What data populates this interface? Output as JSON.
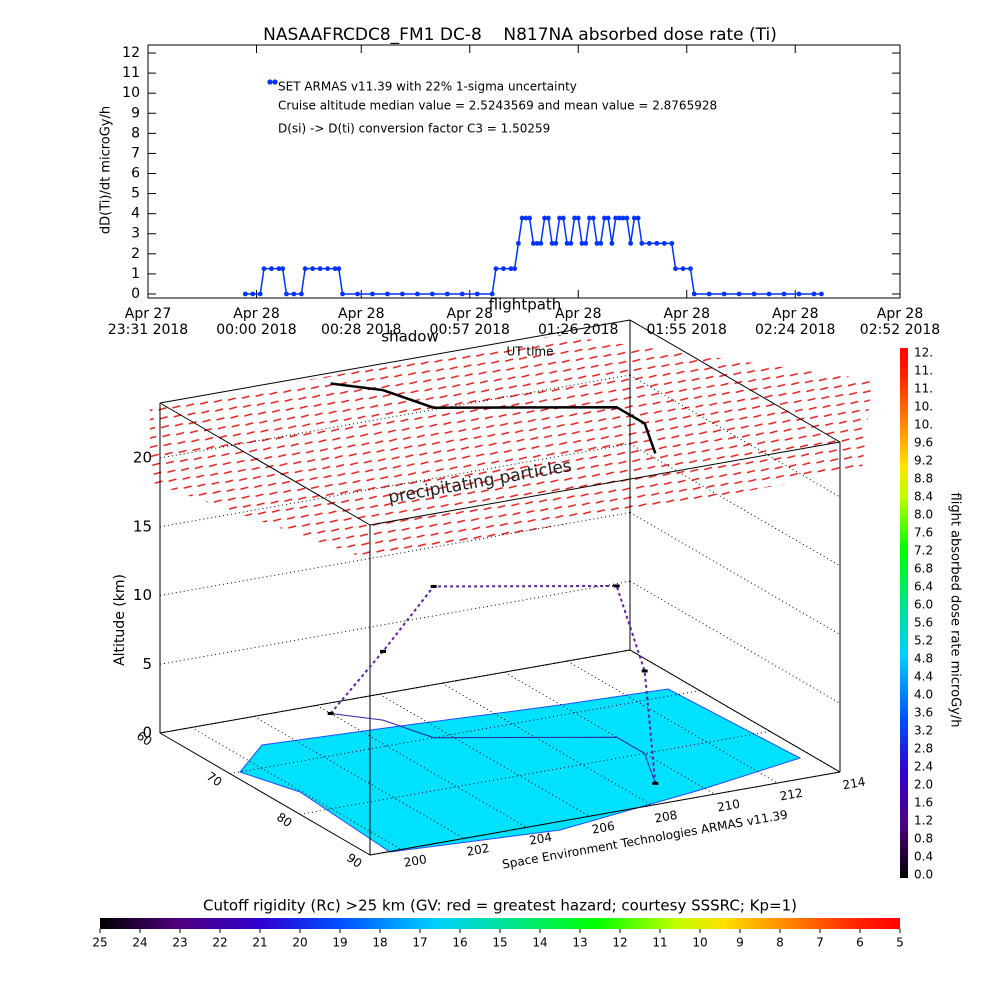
{
  "chart_data": [
    {
      "type": "line",
      "title": "NASAAFRCDC8_FM1 DC-8    N817NA absorbed dose rate (Ti)",
      "ylabel": "dD(Ti)/dt microGy/h",
      "xlabel": "UT time",
      "annotations": [
        "Cruise altitude median value = 2.5243569 and mean value = 2.8765928",
        "D(si) -> D(ti) conversion factor C3 = 1.50259"
      ],
      "x": [
        "2018-04-27 23:57",
        "2018-04-27 23:59",
        "2018-04-28 00:01",
        "2018-04-28 00:02",
        "2018-04-28 00:04",
        "2018-04-28 00:06",
        "2018-04-28 00:07",
        "2018-04-28 00:08",
        "2018-04-28 00:10",
        "2018-04-28 00:12",
        "2018-04-28 00:13",
        "2018-04-28 00:15",
        "2018-04-28 00:17",
        "2018-04-28 00:19",
        "2018-04-28 00:21",
        "2018-04-28 00:22",
        "2018-04-28 00:23",
        "2018-04-28 00:27",
        "2018-04-28 00:31",
        "2018-04-28 00:35",
        "2018-04-28 00:39",
        "2018-04-28 00:43",
        "2018-04-28 00:47",
        "2018-04-28 00:51",
        "2018-04-28 00:55",
        "2018-04-28 00:59",
        "2018-04-28 01:03",
        "2018-04-28 01:04",
        "2018-04-28 01:06",
        "2018-04-28 01:08",
        "2018-04-28 01:09",
        "2018-04-28 01:10",
        "2018-04-28 01:11",
        "2018-04-28 01:12",
        "2018-04-28 01:13",
        "2018-04-28 01:14",
        "2018-04-28 01:15",
        "2018-04-28 01:16",
        "2018-04-28 01:17",
        "2018-04-28 01:18",
        "2018-04-28 01:19",
        "2018-04-28 01:20",
        "2018-04-28 01:21",
        "2018-04-28 01:22",
        "2018-04-28 01:23",
        "2018-04-28 01:24",
        "2018-04-28 01:25",
        "2018-04-28 01:26",
        "2018-04-28 01:27",
        "2018-04-28 01:28",
        "2018-04-28 01:29",
        "2018-04-28 01:30",
        "2018-04-28 01:31",
        "2018-04-28 01:32",
        "2018-04-28 01:33",
        "2018-04-28 01:34",
        "2018-04-28 01:35",
        "2018-04-28 01:36",
        "2018-04-28 01:37",
        "2018-04-28 01:38",
        "2018-04-28 01:39",
        "2018-04-28 01:40",
        "2018-04-28 01:41",
        "2018-04-28 01:42",
        "2018-04-28 01:43",
        "2018-04-28 01:45",
        "2018-04-28 01:47",
        "2018-04-28 01:49",
        "2018-04-28 01:51",
        "2018-04-28 01:52",
        "2018-04-28 01:54",
        "2018-04-28 01:56",
        "2018-04-28 01:57",
        "2018-04-28 02:01",
        "2018-04-28 02:05",
        "2018-04-28 02:09",
        "2018-04-28 02:13",
        "2018-04-28 02:17",
        "2018-04-28 02:21",
        "2018-04-28 02:25",
        "2018-04-28 02:29",
        "2018-04-28 02:31"
      ],
      "series": [
        {
          "name": "SET ARMAS v11.39 with 22% 1-sigma uncertainty",
          "color": "#0033ff",
          "values": [
            0,
            0,
            0,
            1.26,
            1.26,
            1.26,
            1.26,
            0,
            0,
            0,
            1.26,
            1.26,
            1.26,
            1.26,
            1.26,
            1.26,
            0,
            0,
            0,
            0,
            0,
            0,
            0,
            0,
            0,
            0,
            0,
            1.26,
            1.26,
            1.26,
            1.26,
            2.52,
            3.78,
            3.78,
            3.78,
            2.52,
            2.52,
            2.52,
            3.78,
            3.78,
            2.52,
            2.52,
            3.78,
            3.78,
            2.52,
            2.52,
            3.78,
            3.78,
            2.52,
            2.52,
            3.78,
            3.78,
            2.52,
            2.52,
            3.78,
            3.78,
            2.52,
            3.78,
            3.78,
            3.78,
            3.78,
            2.52,
            3.78,
            3.78,
            2.52,
            2.52,
            2.52,
            2.52,
            2.52,
            1.26,
            1.26,
            1.26,
            0,
            0,
            0,
            0,
            0,
            0,
            0,
            0,
            0,
            0
          ]
        }
      ],
      "xlim": [
        "2018-04-27 23:31",
        "2018-04-28 02:52"
      ],
      "xticks": [
        {
          "value": "2018-04-27 23:31",
          "label": [
            "Apr 27",
            "23:31 2018"
          ]
        },
        {
          "value": "2018-04-28 00:00",
          "label": [
            "Apr 28",
            "00:00 2018"
          ]
        },
        {
          "value": "2018-04-28 00:28",
          "label": [
            "Apr 28",
            "00:28 2018"
          ]
        },
        {
          "value": "2018-04-28 00:57",
          "label": [
            "Apr 28",
            "00:57 2018"
          ]
        },
        {
          "value": "2018-04-28 01:26",
          "label": [
            "Apr 28",
            "01:26 2018"
          ]
        },
        {
          "value": "2018-04-28 01:55",
          "label": [
            "Apr 28",
            "01:55 2018"
          ]
        },
        {
          "value": "2018-04-28 02:24",
          "label": [
            "Apr 28",
            "02:24 2018"
          ]
        },
        {
          "value": "2018-04-28 02:52",
          "label": [
            "Apr 28",
            "02:52 2018"
          ]
        }
      ],
      "ylim": [
        -0.2,
        12.4
      ],
      "yticks": [
        0,
        1,
        2,
        3,
        4,
        5,
        6,
        7,
        8,
        9,
        10,
        11,
        12
      ]
    },
    {
      "type": "path3d",
      "zlabel": "Altitude (km)",
      "annotations": [
        "shadow",
        "precipitating particles"
      ],
      "credit": "Space Environment Technologies ARMAS v11.39",
      "xlim": [
        199,
        214
      ],
      "xticks": [
        200,
        202,
        204,
        206,
        208,
        210,
        212,
        214
      ],
      "ylim": [
        60,
        90
      ],
      "yticks": [
        60,
        70,
        80,
        90
      ],
      "zlim": [
        0,
        24
      ],
      "zticks": [
        0,
        5,
        10,
        15,
        20
      ],
      "series": [
        {
          "name": "flightpath",
          "color": "#000000",
          "x": [
            204,
            205,
            205.5,
            210,
            210,
            209
          ],
          "y": [
            62,
            65,
            70,
            76,
            80,
            86
          ],
          "z": [
            0,
            5,
            11,
            11,
            6,
            0
          ]
        }
      ]
    },
    {
      "type": "colorbar",
      "orientation": "vertical",
      "title": "flight absorbed dose rate microGy/h",
      "ticklabels": [
        "12.",
        "11.",
        "11.",
        "10.",
        "10.",
        "9.6",
        "9.2",
        "8.8",
        "8.4",
        "8.0",
        "7.6",
        "7.2",
        "6.8",
        "6.4",
        "6.0",
        "5.6",
        "5.2",
        "4.8",
        "4.4",
        "4.0",
        "3.6",
        "3.2",
        "2.8",
        "2.4",
        "2.0",
        "1.6",
        "1.2",
        "0.8",
        "0.4",
        "0.0"
      ]
    },
    {
      "type": "colorbar",
      "orientation": "horizontal",
      "title": "Cutoff rigidity (Rc) >25 km (GV: red = greatest hazard; courtesy SSSRC; Kp=1)",
      "clim": [
        25,
        5
      ],
      "ticks": [
        25,
        24,
        23,
        22,
        21,
        20,
        19,
        18,
        17,
        16,
        15,
        14,
        13,
        12,
        11,
        10,
        9,
        8,
        7,
        6,
        5
      ]
    }
  ]
}
